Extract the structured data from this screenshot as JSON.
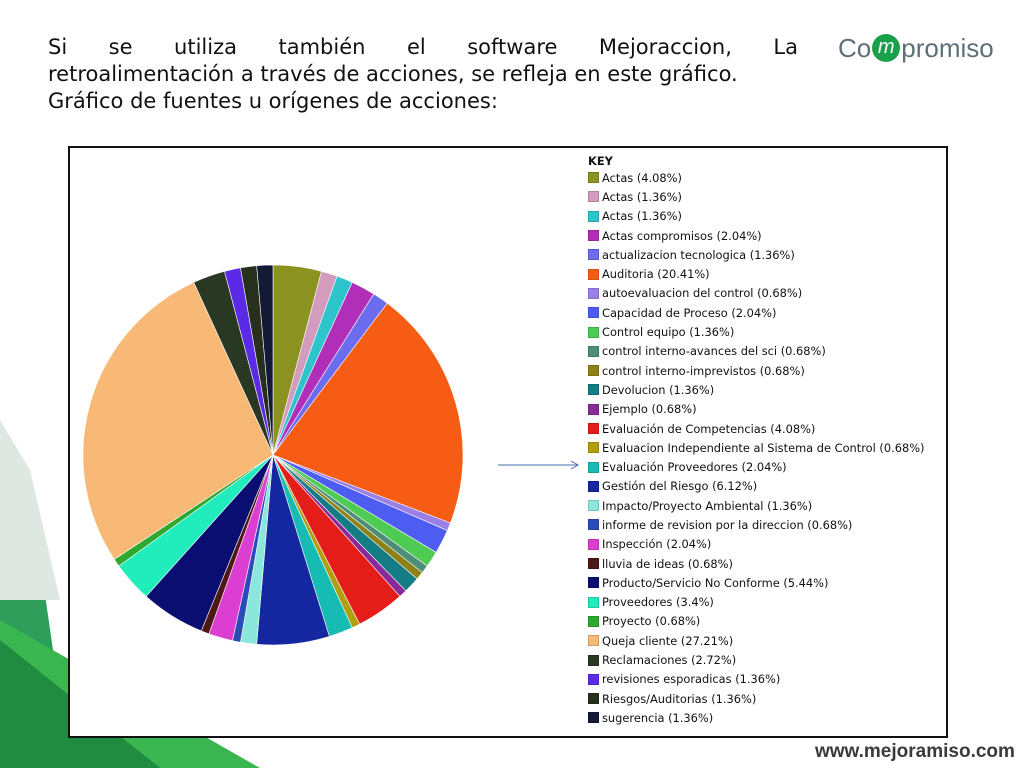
{
  "intro": {
    "line1": "Si se utiliza también el software Mejoraccion, La",
    "line2": "retroalimentación a través de acciones, se refleja en este gráfico.",
    "line3": "Gráfico de fuentes u orígenes de acciones:"
  },
  "logo": {
    "text": "Compromiso"
  },
  "footer": {
    "url": "www.mejoramiso.com"
  },
  "chart_data": {
    "type": "pie",
    "legend_title": "KEY",
    "legend_position": "right",
    "slices": [
      {
        "label": "Actas (4.08%)",
        "value": 4.08,
        "color": "#8a9220"
      },
      {
        "label": "Actas (1.36%)",
        "value": 1.36,
        "color": "#d39bbd"
      },
      {
        "label": "Actas (1.36%)",
        "value": 1.36,
        "color": "#2ec4cc"
      },
      {
        "label": "Actas compromisos (2.04%)",
        "value": 2.04,
        "color": "#b12fb8"
      },
      {
        "label": "actualizacion tecnologica (1.36%)",
        "value": 1.36,
        "color": "#6c6cf0"
      },
      {
        "label": "Auditoria (20.41%)",
        "value": 20.41,
        "color": "#f75c14"
      },
      {
        "label": "autoevaluacion del control (0.68%)",
        "value": 0.68,
        "color": "#9a80e6"
      },
      {
        "label": "Capacidad de Proceso (2.04%)",
        "value": 2.04,
        "color": "#4d5df2"
      },
      {
        "label": "Control equipo (1.36%)",
        "value": 1.36,
        "color": "#4ecb53"
      },
      {
        "label": "control interno-avances del sci (0.68%)",
        "value": 0.68,
        "color": "#4c8e78"
      },
      {
        "label": "control interno-imprevistos (0.68%)",
        "value": 0.68,
        "color": "#8d8118"
      },
      {
        "label": "Devolucion (1.36%)",
        "value": 1.36,
        "color": "#147c84"
      },
      {
        "label": "Ejemplo (0.68%)",
        "value": 0.68,
        "color": "#8a2a98"
      },
      {
        "label": "Evaluación de Competencias (4.08%)",
        "value": 4.08,
        "color": "#e41d18"
      },
      {
        "label": "Evaluacion Independiente al Sistema de Control (0.68%)",
        "value": 0.68,
        "color": "#b09e0e"
      },
      {
        "label": "Evaluación Proveedores (2.04%)",
        "value": 2.04,
        "color": "#16bcb4"
      },
      {
        "label": "Gestión del Riesgo (6.12%)",
        "value": 6.12,
        "color": "#1427a0"
      },
      {
        "label": "Impacto/Proyecto Ambiental (1.36%)",
        "value": 1.36,
        "color": "#8be6dc"
      },
      {
        "label": "informe de revision por la direccion (0.68%)",
        "value": 0.68,
        "color": "#2a4cb8"
      },
      {
        "label": "Inspección (2.04%)",
        "value": 2.04,
        "color": "#dc3ed2"
      },
      {
        "label": "lluvia de ideas (0.68%)",
        "value": 0.68,
        "color": "#4e1814"
      },
      {
        "label": "Producto/Servicio No Conforme (5.44%)",
        "value": 5.44,
        "color": "#0a0e70"
      },
      {
        "label": "Proveedores (3.4%)",
        "value": 3.4,
        "color": "#20ecbc"
      },
      {
        "label": "Proyecto (0.68%)",
        "value": 0.68,
        "color": "#2ea82e"
      },
      {
        "label": "Queja cliente (27.21%)",
        "value": 27.21,
        "color": "#f8b876"
      },
      {
        "label": "Reclamaciones (2.72%)",
        "value": 2.72,
        "color": "#283822"
      },
      {
        "label": "revisiones esporadicas (1.36%)",
        "value": 1.36,
        "color": "#5a2ae6"
      },
      {
        "label": "Riesgos/Auditorias (1.36%)",
        "value": 1.36,
        "color": "#27301c"
      },
      {
        "label": "sugerencia (1.36%)",
        "value": 1.36,
        "color": "#121a36"
      }
    ],
    "annotation": "arrow pointing to legend entry: Evaluación Proveedores (2.04%)"
  }
}
